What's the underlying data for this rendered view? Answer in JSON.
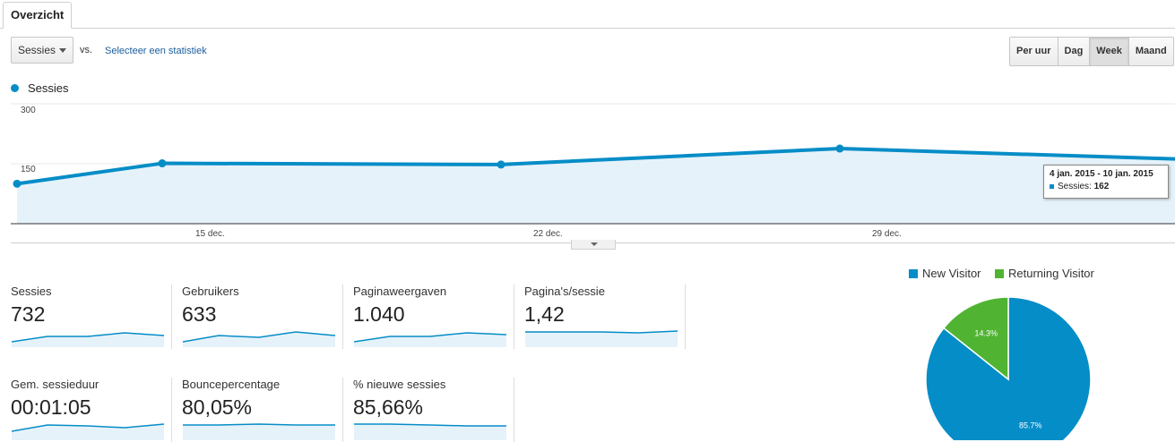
{
  "tab": {
    "label": "Overzicht"
  },
  "controls": {
    "metric_select": "Sessies",
    "vs_label": "vs.",
    "select_metric_link": "Selecteer een statistiek",
    "periods": [
      "Per uur",
      "Dag",
      "Week",
      "Maand"
    ],
    "active_period": "Week"
  },
  "legend": {
    "series_label": "Sessies",
    "color": "#058dc7"
  },
  "chart_data": {
    "type": "area",
    "series": [
      {
        "name": "Sessies",
        "values": [
          100,
          151,
          148,
          188,
          162
        ]
      }
    ],
    "x_ticks": [
      "15 dec.",
      "22 dec.",
      "29 dec."
    ],
    "y_ticks": [
      "300",
      "150"
    ],
    "ylim": [
      0,
      300
    ],
    "grid": true
  },
  "tooltip": {
    "title": "4 jan. 2015 - 10 jan. 2015",
    "label": "Sessies:",
    "value": "162"
  },
  "scorecards": [
    {
      "name": "Sessies",
      "value": "732"
    },
    {
      "name": "Gebruikers",
      "value": "633"
    },
    {
      "name": "Paginaweergaven",
      "value": "1.040"
    },
    {
      "name": "Pagina's/sessie",
      "value": "1,42"
    },
    {
      "name": "Gem. sessieduur",
      "value": "00:01:05"
    },
    {
      "name": "Bouncepercentage",
      "value": "80,05%"
    },
    {
      "name": "% nieuwe sessies",
      "value": "85,66%"
    }
  ],
  "pie": {
    "legend": [
      {
        "label": "New Visitor",
        "color": "#058dc7"
      },
      {
        "label": "Returning Visitor",
        "color": "#50b432"
      }
    ],
    "chart_data": {
      "type": "pie",
      "categories": [
        "New Visitor",
        "Returning Visitor"
      ],
      "values": [
        85.7,
        14.3
      ],
      "labels": [
        "85.7%",
        "14.3%"
      ]
    }
  }
}
